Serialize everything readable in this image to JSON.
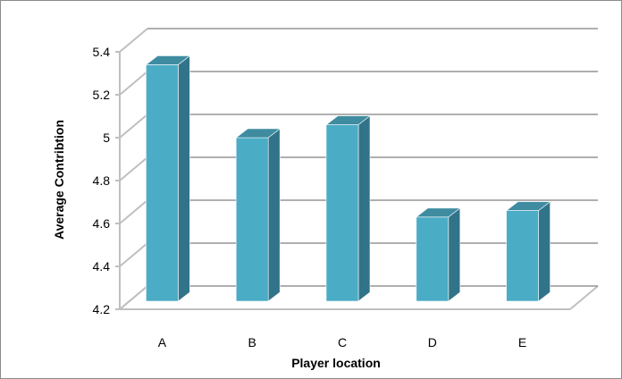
{
  "chart_data": {
    "type": "bar",
    "style": "3d-column",
    "categories": [
      "A",
      "B",
      "C",
      "D",
      "E"
    ],
    "values": [
      5.34,
      5.0,
      5.06,
      4.63,
      4.66
    ],
    "title": "",
    "xlabel": "Player location",
    "ylabel": "Average Contribtion",
    "ylim": [
      4.2,
      5.4
    ],
    "yticks": [
      "4.2",
      "4.4",
      "4.6",
      "4.8",
      "5",
      "5.2",
      "5.4"
    ],
    "grid": true,
    "legend": "none",
    "colors": {
      "bar_front": "#4bacc6",
      "bar_top": "#3f8ca1",
      "bar_side": "#31748a",
      "gridline": "#7f7f7f",
      "wall": "#bfbfbf"
    }
  }
}
